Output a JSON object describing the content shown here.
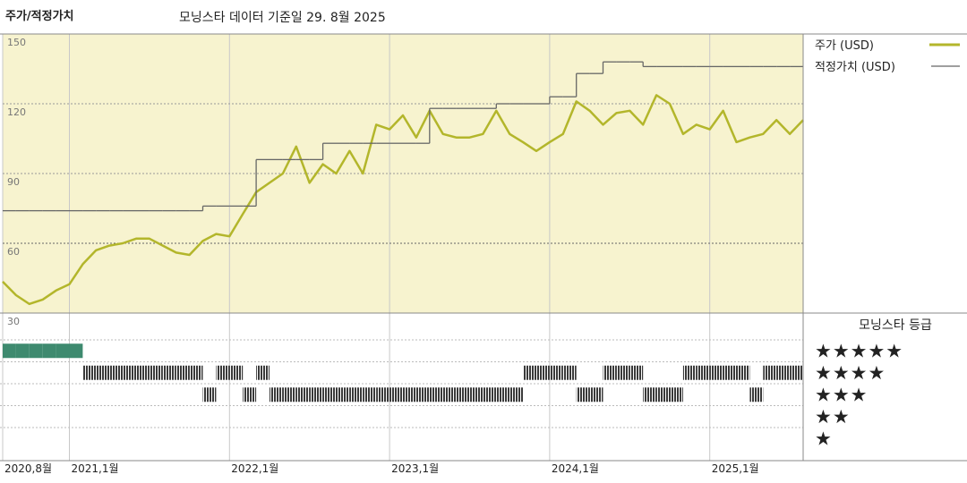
{
  "chart_data": {
    "type": "line",
    "title": "주가/적정가치",
    "subtitle": "모닝스타 데이터 기준일 29. 8월 2025",
    "categories": [
      "2020,8월",
      null,
      null,
      null,
      null,
      "2021,1월",
      null,
      null,
      null,
      null,
      null,
      null,
      null,
      null,
      null,
      null,
      null,
      "2022,1월",
      null,
      null,
      null,
      null,
      null,
      null,
      null,
      null,
      null,
      null,
      null,
      "2023,1월",
      null,
      null,
      null,
      null,
      null,
      null,
      null,
      null,
      null,
      null,
      null,
      "2024,1월",
      null,
      null,
      null,
      null,
      null,
      null,
      null,
      null,
      null,
      null,
      null,
      "2025,1월",
      null,
      null,
      null,
      null,
      null,
      null,
      null
    ],
    "series": [
      {
        "name": "주가 (USD)",
        "color": "#b3b62b",
        "values": [
          43.5,
          37.7,
          33.9,
          35.8,
          39.7,
          42.4,
          51,
          57,
          59,
          60,
          62,
          62,
          59,
          56,
          55,
          61,
          64,
          63,
          72.6,
          82,
          86,
          90,
          101.6,
          86,
          94,
          90,
          99.7,
          90,
          111,
          109,
          115,
          105.5,
          117,
          107,
          105.5,
          105.5,
          107,
          117,
          107,
          103.5,
          99.7,
          103.5,
          107,
          121,
          117,
          111,
          116,
          117,
          111,
          123.7,
          120,
          107,
          111,
          109,
          117,
          103.5,
          105.5,
          107,
          113,
          107,
          113
        ]
      },
      {
        "name": "적정가치 (USD)",
        "color": "#666666",
        "step": true,
        "values": [
          74,
          74,
          74,
          74,
          74,
          74,
          74,
          74,
          74,
          74,
          74,
          74,
          74,
          74,
          74,
          76,
          76,
          76,
          76,
          96,
          96,
          96,
          96,
          96,
          103,
          103,
          103,
          103,
          103,
          103,
          103,
          103,
          118,
          118,
          118,
          118,
          118,
          120,
          120,
          120,
          120,
          123,
          123,
          133,
          133,
          138,
          138,
          138,
          136,
          136,
          136,
          136,
          136,
          136,
          136,
          136,
          136,
          136,
          136,
          136,
          136
        ]
      }
    ],
    "ylim": [
      30,
      150
    ],
    "yticks": [
      30,
      60,
      90,
      120,
      150
    ],
    "grid": true,
    "rating": {
      "title": "모닝스타 등급",
      "levels": [
        "★★★★★",
        "★★★★",
        "★★★",
        "★★",
        "★"
      ],
      "color": "#3a3a3a",
      "top_color": "#3e8a6f",
      "values": [
        5,
        5,
        5,
        5,
        5,
        5,
        4,
        4,
        4,
        4,
        4,
        4,
        4,
        4,
        4,
        3,
        4,
        4,
        3,
        4,
        3,
        3,
        3,
        3,
        3,
        3,
        3,
        3,
        3,
        3,
        3,
        3,
        3,
        3,
        3,
        3,
        3,
        3,
        3,
        4,
        4,
        4,
        4,
        3,
        3,
        4,
        4,
        4,
        3,
        3,
        3,
        4,
        4,
        4,
        4,
        4,
        3,
        4,
        4,
        4,
        4
      ]
    }
  }
}
